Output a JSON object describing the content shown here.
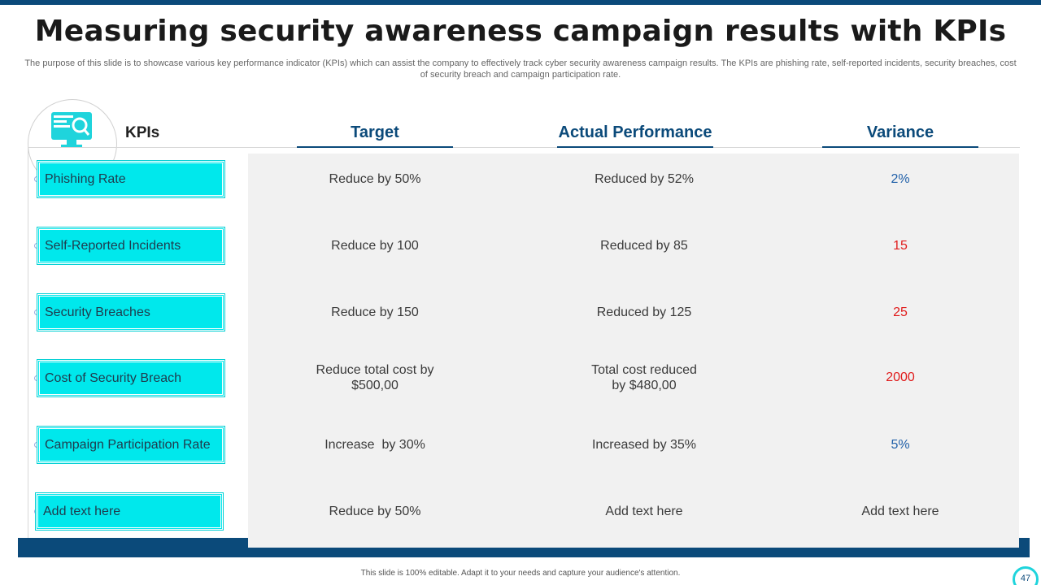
{
  "slide": {
    "title": "Measuring security awareness campaign results with KPIs",
    "subtitle": "The purpose of this slide is to showcase various key performance indicator (KPIs) which can assist the company to effectively track cyber security awareness campaign results. The KPIs are phishing rate, self-reported incidents, security breaches, cost of security breach and campaign participation rate.",
    "footer": "This slide is 100% editable. Adapt it to your needs and capture your audience's attention.",
    "page_number": "47"
  },
  "table": {
    "kpi_header": "KPIs",
    "headers": [
      "Target",
      "Actual Performance",
      "Variance"
    ],
    "rows": [
      {
        "kpi": "Phishing Rate",
        "target": "Reduce by 50%",
        "actual": "Reduced by 52%",
        "variance": "2%",
        "variance_color": "blue"
      },
      {
        "kpi": "Self-Reported Incidents",
        "target": "Reduce by 100",
        "actual": "Reduced by 85",
        "variance": "15",
        "variance_color": "red"
      },
      {
        "kpi": "Security Breaches",
        "target": "Reduce by 150",
        "actual": "Reduced by 125",
        "variance": "25",
        "variance_color": "red"
      },
      {
        "kpi": "Cost of Security Breach",
        "target": "Reduce total cost by $500,00",
        "actual": "Total cost reduced by $480,00",
        "variance": "2000",
        "variance_color": "red"
      },
      {
        "kpi": "Campaign Participation Rate",
        "target": "Increase  by 30%",
        "actual": "Increased by 35%",
        "variance": "5%",
        "variance_color": "blue"
      },
      {
        "kpi": "Add text here",
        "target": "Reduce by 50%",
        "actual": "Add text here",
        "variance": "Add text here",
        "variance_color": "gray"
      }
    ]
  },
  "colors": {
    "accent_dark": "#0b4a7a",
    "kpi_box": "#00e8ec",
    "variance_blue": "#1f5fa8",
    "variance_red": "#e01b1b"
  },
  "icons": {
    "kpi_header_icon": "monitor-search-icon"
  }
}
